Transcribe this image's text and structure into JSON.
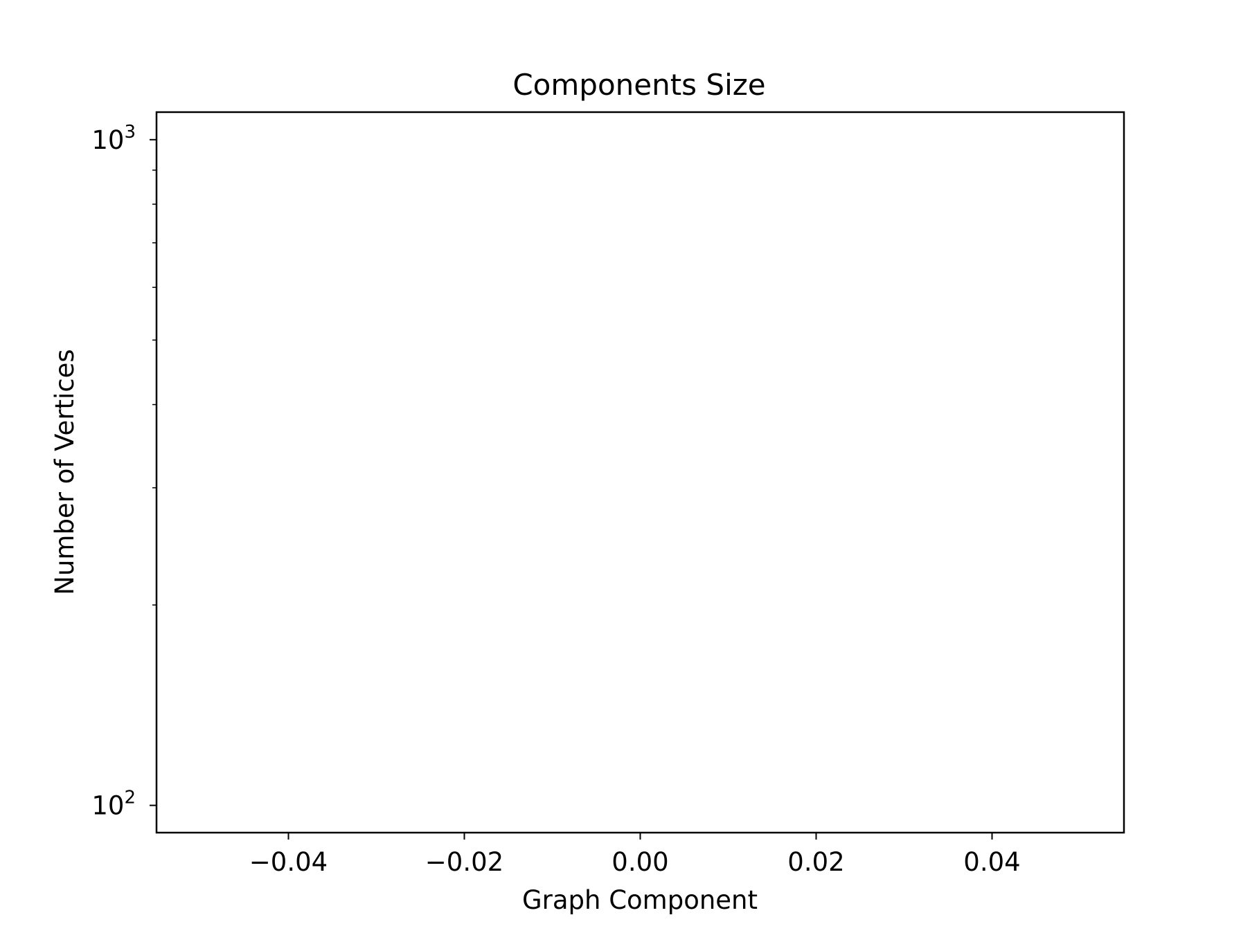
{
  "chart_data": {
    "type": "scatter",
    "title": "Components Size",
    "xlabel": "Graph Component",
    "ylabel": "Number of Vertices",
    "x": [],
    "y": [],
    "series": [],
    "xlim": [
      -0.055,
      0.055
    ],
    "ylim": [
      91,
      1100
    ],
    "yscale": "log",
    "grid": false,
    "legend": "none",
    "x_ticks": [
      {
        "value": -0.04,
        "label": "−0.04"
      },
      {
        "value": -0.02,
        "label": "−0.02"
      },
      {
        "value": 0.0,
        "label": "0.00"
      },
      {
        "value": 0.02,
        "label": "0.02"
      },
      {
        "value": 0.04,
        "label": "0.04"
      }
    ],
    "y_major_ticks": [
      {
        "value": 100,
        "base": "10",
        "exponent": "2"
      },
      {
        "value": 1000,
        "base": "10",
        "exponent": "3"
      }
    ],
    "y_minor_ticks": [
      200,
      300,
      400,
      500,
      600,
      700,
      800,
      900
    ]
  },
  "colors": {
    "axes": "#000000",
    "background": "#ffffff"
  }
}
